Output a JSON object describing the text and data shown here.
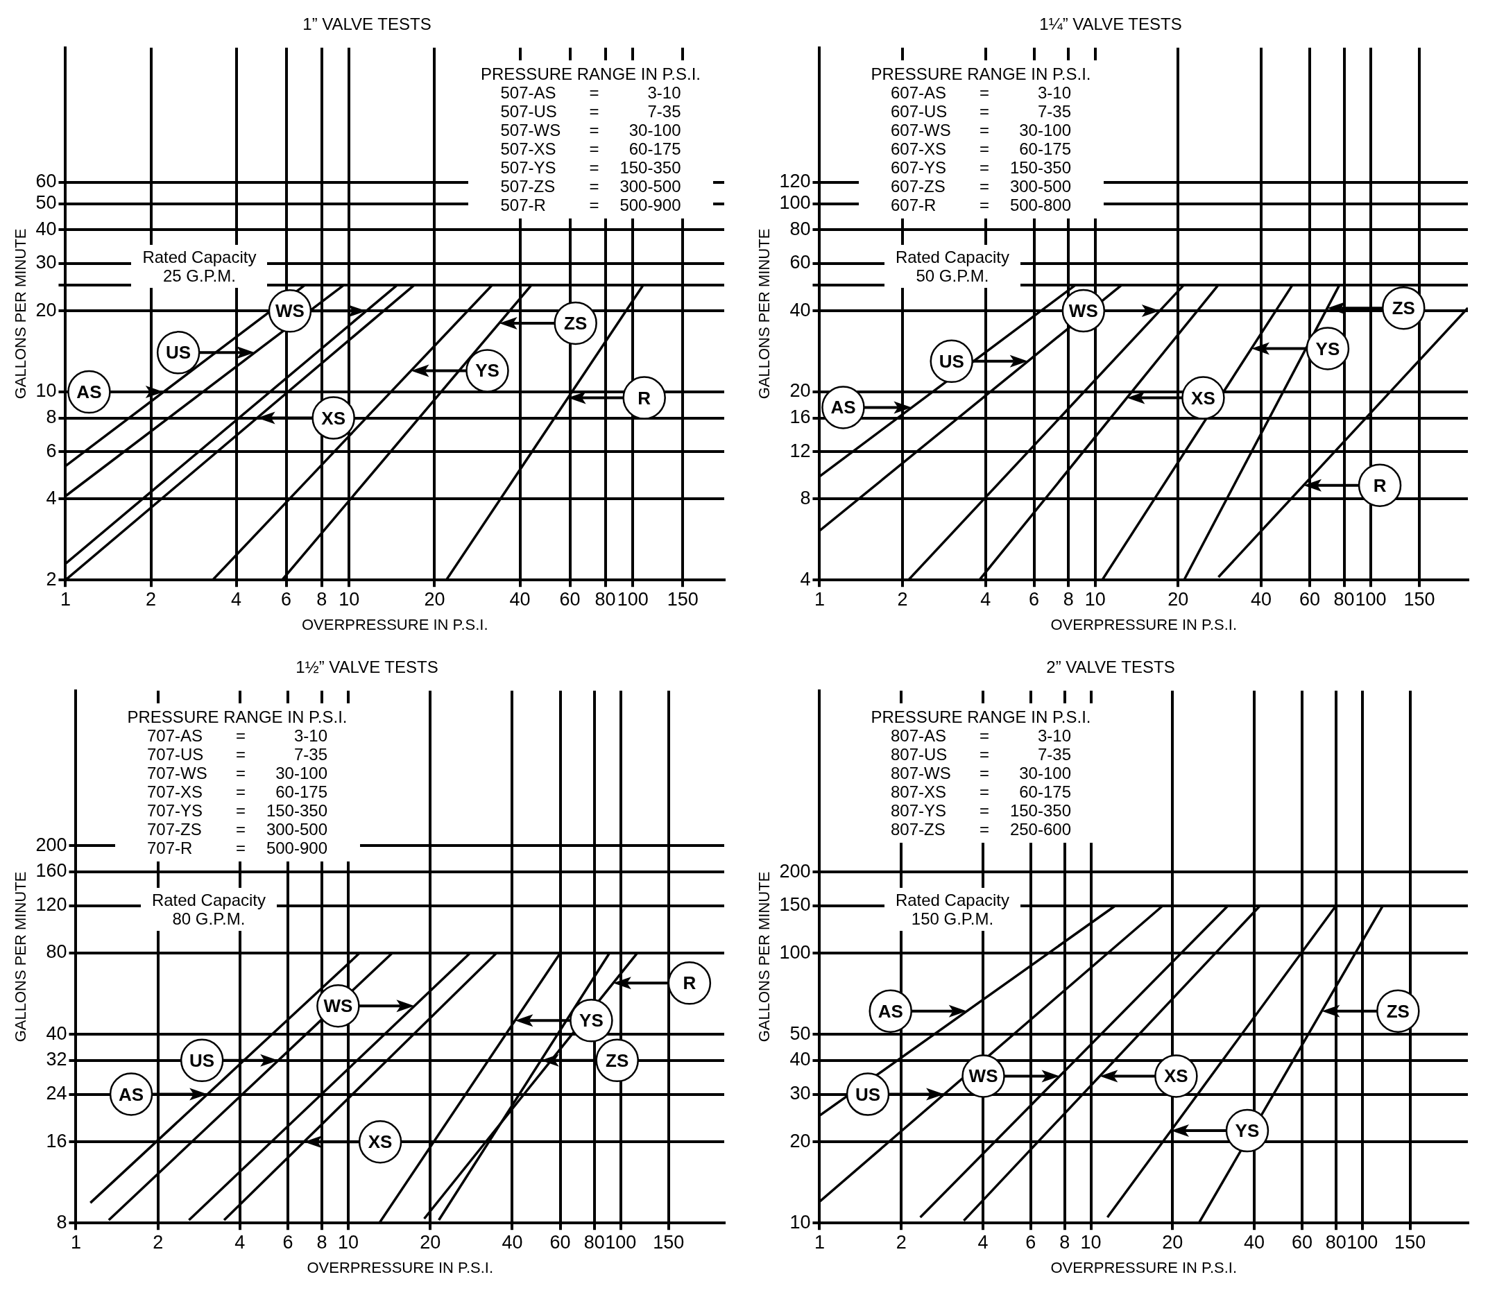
{
  "chart_data": [
    {
      "type": "line",
      "title": "1” VALVE TESTS",
      "xlabel": "OVERPRESSURE IN P.S.I.",
      "ylabel": "GALLONS PER MINUTE",
      "log": "xy",
      "grid": true,
      "xlim": [
        1,
        210
      ],
      "ylim": [
        2,
        190
      ],
      "xticks": [
        1,
        2,
        4,
        6,
        8,
        10,
        20,
        40,
        60,
        80,
        100,
        150
      ],
      "yticks": [
        2,
        4,
        6,
        8,
        10,
        20,
        {
          "value": 25,
          "label": null
        },
        30,
        40,
        50,
        60
      ],
      "series": [
        {
          "color": "#000000",
          "x": [
            1,
            7
          ],
          "values": [
            5.3,
            25
          ]
        },
        {
          "color": "#000000",
          "x": [
            1,
            9.6
          ],
          "values": [
            4.1,
            25
          ]
        },
        {
          "color": "#000000",
          "x": [
            1,
            14.8
          ],
          "values": [
            2.3,
            25
          ]
        },
        {
          "color": "#000000",
          "x": [
            1,
            17
          ],
          "values": [
            2,
            25
          ]
        },
        {
          "color": "#000000",
          "x": [
            3.3,
            32
          ],
          "values": [
            2,
            25
          ]
        },
        {
          "color": "#000000",
          "x": [
            5.8,
            44
          ],
          "values": [
            2,
            25
          ]
        },
        {
          "color": "#000000",
          "x": [
            22,
            109
          ],
          "values": [
            2,
            25
          ]
        }
      ],
      "annotations": [
        "PRESSURE RANGE IN P.S.I.",
        "507-AS = 3-10",
        "507-US = 7-35",
        "507-WS = 30-100",
        "507-XS = 60-175",
        "507-YS = 150-350",
        "507-ZS = 300-500",
        "507-R = 500-900",
        "Rated Capacity",
        "25 G.P.M.",
        "AS",
        "US",
        "WS",
        "XS",
        "YS",
        "ZS",
        "R"
      ]
    },
    {
      "type": "line",
      "title": "1¼” VALVE TESTS",
      "xlabel": "OVERPRESSURE IN P.S.I.",
      "ylabel": "GALLONS PER MINUTE",
      "log": "xy",
      "grid": true,
      "xlim": [
        1,
        225
      ],
      "ylim": [
        4,
        380
      ],
      "xticks": [
        1,
        2,
        4,
        6,
        8,
        10,
        20,
        40,
        60,
        80,
        100,
        150
      ],
      "yticks": [
        4,
        8,
        12,
        16,
        20,
        40,
        {
          "value": 50,
          "label": null
        },
        60,
        80,
        100,
        120
      ],
      "series": [
        {
          "color": "#000000",
          "x": [
            1,
            8.5
          ],
          "values": [
            9.7,
            50
          ]
        },
        {
          "color": "#000000",
          "x": [
            1,
            12.5
          ],
          "values": [
            6.1,
            50
          ]
        },
        {
          "color": "#000000",
          "x": [
            2.1,
            21
          ],
          "values": [
            4,
            50
          ]
        },
        {
          "color": "#000000",
          "x": [
            3.8,
            28
          ],
          "values": [
            4,
            50
          ]
        },
        {
          "color": "#000000",
          "x": [
            10.6,
            52
          ],
          "values": [
            4,
            50
          ]
        },
        {
          "color": "#000000",
          "x": [
            21,
            77
          ],
          "values": [
            4,
            50
          ]
        },
        {
          "color": "#000000",
          "x": [
            28,
            225
          ],
          "values": [
            4.1,
            41
          ]
        }
      ],
      "annotations": [
        "PRESSURE RANGE IN P.S.I.",
        "607-AS = 3-10",
        "607-US = 7-35",
        "607-WS = 30-100",
        "607-XS = 60-175",
        "607-YS = 150-350",
        "607-ZS = 300-500",
        "607-R = 500-800",
        "Rated Capacity",
        "50 G.P.M.",
        "AS",
        "US",
        "WS",
        "XS",
        "YS",
        "ZS",
        "R"
      ]
    },
    {
      "type": "line",
      "title": "1½” VALVE TESTS",
      "xlabel": "OVERPRESSURE IN P.S.I.",
      "ylabel": "GALLONS PER MINUTE",
      "log": "xy",
      "grid": true,
      "xlim": [
        1,
        240
      ],
      "ylim": [
        8,
        750
      ],
      "xticks": [
        1,
        2,
        4,
        6,
        8,
        10,
        20,
        40,
        60,
        80,
        100,
        150
      ],
      "yticks": [
        8,
        16,
        24,
        32,
        40,
        80,
        120,
        160,
        200
      ],
      "series": [
        {
          "color": "#000000",
          "x": [
            1.13,
            11
          ],
          "values": [
            9.5,
            80
          ]
        },
        {
          "color": "#000000",
          "x": [
            1.32,
            14.5
          ],
          "values": [
            8.2,
            80
          ]
        },
        {
          "color": "#000000",
          "x": [
            2.6,
            28
          ],
          "values": [
            8.2,
            80
          ]
        },
        {
          "color": "#000000",
          "x": [
            3.5,
            35
          ],
          "values": [
            8.2,
            80
          ]
        },
        {
          "color": "#000000",
          "x": [
            13,
            60
          ],
          "values": [
            8,
            80
          ]
        },
        {
          "color": "#000000",
          "x": [
            21.5,
            91
          ],
          "values": [
            8.2,
            80
          ]
        },
        {
          "color": "#000000",
          "x": [
            19,
            115
          ],
          "values": [
            8.3,
            80
          ]
        }
      ],
      "annotations": [
        "PRESSURE RANGE IN P.S.I.",
        "707-AS = 3-10",
        "707-US = 7-35",
        "707-WS = 30-100",
        "707-XS = 60-175",
        "707-YS = 150-350",
        "707-ZS = 300-500",
        "707-R = 500-900",
        "Rated Capacity",
        "80 G.P.M.",
        "AS",
        "US",
        "WS",
        "XS",
        "YS",
        "ZS",
        "R"
      ]
    },
    {
      "type": "line",
      "title": "2” VALVE TESTS",
      "xlabel": "OVERPRESSURE IN P.S.I.",
      "ylabel": "GALLONS PER MINUTE",
      "log": "xy",
      "grid": true,
      "xlim": [
        1,
        245
      ],
      "ylim": [
        10,
        940
      ],
      "xticks": [
        1,
        2,
        4,
        6,
        8,
        10,
        20,
        40,
        60,
        80,
        100,
        150
      ],
      "yticks": [
        10,
        20,
        30,
        40,
        50,
        100,
        150,
        200
      ],
      "series": [
        {
          "color": "#000000",
          "x": [
            1,
            12.3
          ],
          "values": [
            25,
            150
          ]
        },
        {
          "color": "#000000",
          "x": [
            1,
            18.4
          ],
          "values": [
            12,
            150
          ]
        },
        {
          "color": "#000000",
          "x": [
            2.35,
            32
          ],
          "values": [
            10.5,
            150
          ]
        },
        {
          "color": "#000000",
          "x": [
            3.4,
            42
          ],
          "values": [
            10.2,
            150
          ]
        },
        {
          "color": "#000000",
          "x": [
            11.5,
            80
          ],
          "values": [
            10.5,
            150
          ]
        },
        {
          "color": "#000000",
          "x": [
            25,
            119
          ],
          "values": [
            10,
            150
          ]
        }
      ],
      "annotations": [
        "PRESSURE RANGE IN P.S.I.",
        "807-AS = 3-10",
        "807-US = 7-35",
        "807-WS = 30-100",
        "807-XS = 60-175",
        "807-YS = 150-350",
        "807-ZS = 250-600",
        "Rated Capacity",
        "150 G.P.M.",
        "AS",
        "US",
        "WS",
        "XS",
        "YS",
        "ZS"
      ]
    }
  ]
}
